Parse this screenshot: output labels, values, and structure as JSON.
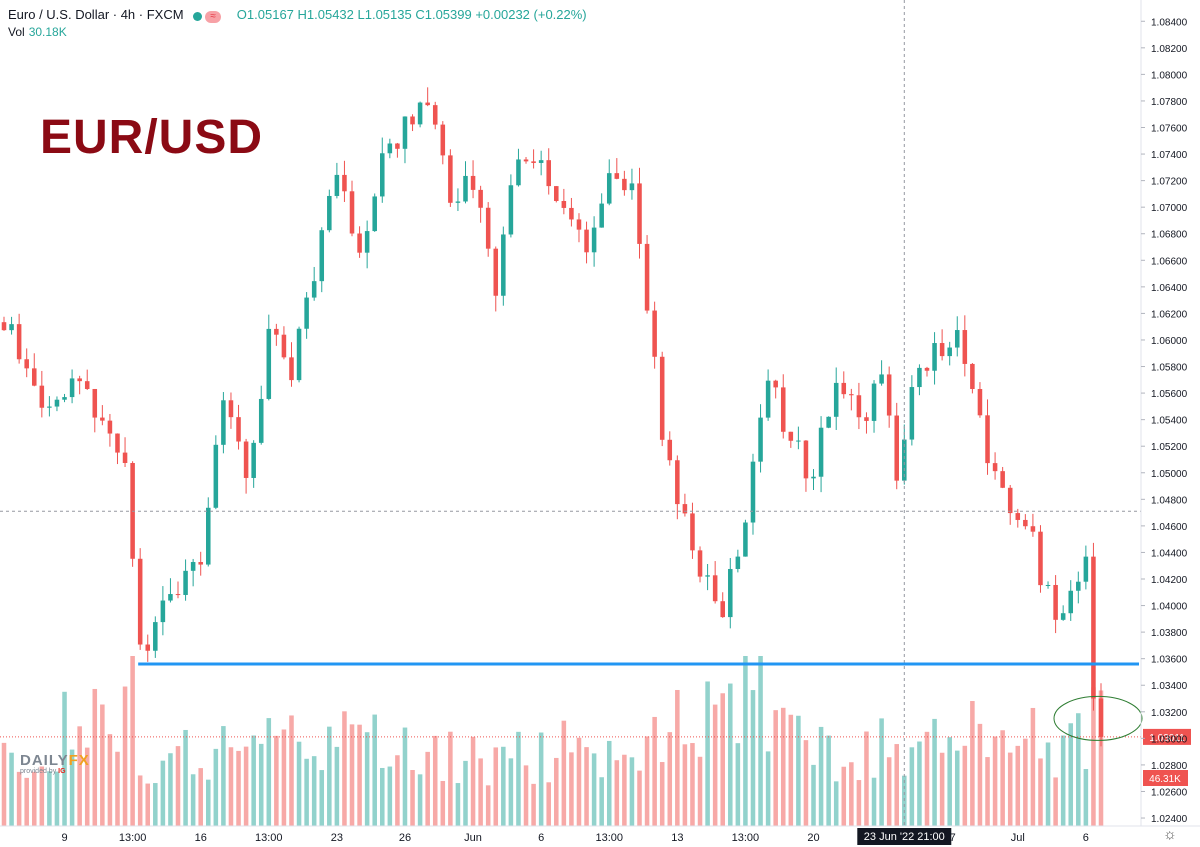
{
  "header": {
    "symbol": "Euro / U.S. Dollar · 4h · FXCM",
    "ohlc": "O1.05167 H1.05432 L1.05135 C1.05399 +0.00232 (+0.22%)",
    "vol_label": "Vol",
    "vol_value": "30.18K"
  },
  "overlay_title": "EUR/USD",
  "logo": {
    "brand": "DAILY",
    "brand_accent": "FX",
    "sub": "provided by",
    "sub_brand": "IG"
  },
  "icons": {
    "settings": "gear-icon"
  },
  "colors": {
    "up": "#26a69a",
    "down": "#ef5350",
    "support": "#2196f3",
    "circle": "#2e7d32",
    "price_tag": "#ef5350"
  },
  "chart_data": {
    "type": "candlestick",
    "ylim": [
      1.0234,
      1.0853
    ],
    "y_ticks": [
      "1.08400",
      "1.08200",
      "1.08000",
      "1.07800",
      "1.07600",
      "1.07400",
      "1.07200",
      "1.07000",
      "1.06800",
      "1.06600",
      "1.06400",
      "1.06200",
      "1.06000",
      "1.05800",
      "1.05600",
      "1.05400",
      "1.05200",
      "1.05000",
      "1.04800",
      "1.04600",
      "1.04400",
      "1.04200",
      "1.04000",
      "1.03800",
      "1.03600",
      "1.03400",
      "1.03200",
      "1.03000",
      "1.02800",
      "1.02600",
      "1.02400"
    ],
    "x_ticks": [
      {
        "label": "9",
        "index": 8
      },
      {
        "label": "13:00",
        "index": 17
      },
      {
        "label": "16",
        "index": 26
      },
      {
        "label": "13:00",
        "index": 35
      },
      {
        "label": "23",
        "index": 44
      },
      {
        "label": "26",
        "index": 53
      },
      {
        "label": "Jun",
        "index": 62
      },
      {
        "label": "6",
        "index": 71
      },
      {
        "label": "13:00",
        "index": 80
      },
      {
        "label": "13",
        "index": 89
      },
      {
        "label": "13:00",
        "index": 98
      },
      {
        "label": "20",
        "index": 107
      },
      {
        "label": "27",
        "index": 125
      },
      {
        "label": "Jul",
        "index": 134
      },
      {
        "label": "6",
        "index": 143
      }
    ],
    "crosshair": {
      "index": 119,
      "label": "23 Jun '22   21:00",
      "price": 1.0471
    },
    "support_level": {
      "price": 1.0356,
      "from_index": 18,
      "to_index": 149
    },
    "last_price": {
      "value": 1.03011,
      "label": "1.03011"
    },
    "last_volume": {
      "label": "46.31K"
    },
    "circle_annotation": {
      "price": 1.0315,
      "index": 143
    },
    "volume_max": 60000,
    "keypoints": [
      [
        0,
        1.0618
      ],
      [
        5,
        1.054
      ],
      [
        9,
        1.057
      ],
      [
        13,
        1.0535
      ],
      [
        16,
        1.0515
      ],
      [
        17,
        1.044
      ],
      [
        18,
        1.036
      ],
      [
        20,
        1.039
      ],
      [
        23,
        1.041
      ],
      [
        26,
        1.044
      ],
      [
        29,
        1.056
      ],
      [
        32,
        1.049
      ],
      [
        35,
        1.06
      ],
      [
        38,
        1.058
      ],
      [
        41,
        1.065
      ],
      [
        44,
        1.073
      ],
      [
        47,
        1.066
      ],
      [
        50,
        1.074
      ],
      [
        53,
        1.076
      ],
      [
        56,
        1.0785
      ],
      [
        59,
        1.07
      ],
      [
        62,
        1.072
      ],
      [
        65,
        1.064
      ],
      [
        68,
        1.074
      ],
      [
        71,
        1.0725
      ],
      [
        74,
        1.07
      ],
      [
        77,
        1.066
      ],
      [
        80,
        1.073
      ],
      [
        83,
        1.071
      ],
      [
        85,
        1.062
      ],
      [
        87,
        1.0535
      ],
      [
        89,
        1.048
      ],
      [
        92,
        1.043
      ],
      [
        95,
        1.04
      ],
      [
        98,
        1.046
      ],
      [
        101,
        1.058
      ],
      [
        104,
        1.052
      ],
      [
        107,
        1.05
      ],
      [
        110,
        1.0575
      ],
      [
        113,
        1.054
      ],
      [
        116,
        1.057
      ],
      [
        118,
        1.05
      ],
      [
        120,
        1.056
      ],
      [
        123,
        1.059
      ],
      [
        126,
        1.0605
      ],
      [
        129,
        1.0535
      ],
      [
        132,
        1.048
      ],
      [
        135,
        1.047
      ],
      [
        137,
        1.042
      ],
      [
        139,
        1.039
      ],
      [
        141,
        1.042
      ],
      [
        143,
        1.0435
      ],
      [
        144,
        1.033
      ],
      [
        145,
        1.0301
      ]
    ],
    "volume_profile": [
      [
        0,
        30
      ],
      [
        17,
        58
      ],
      [
        18,
        32
      ],
      [
        40,
        38
      ],
      [
        62,
        28
      ],
      [
        85,
        35
      ],
      [
        98,
        60
      ],
      [
        110,
        32
      ],
      [
        125,
        38
      ],
      [
        140,
        34
      ],
      [
        145,
        46
      ]
    ]
  }
}
